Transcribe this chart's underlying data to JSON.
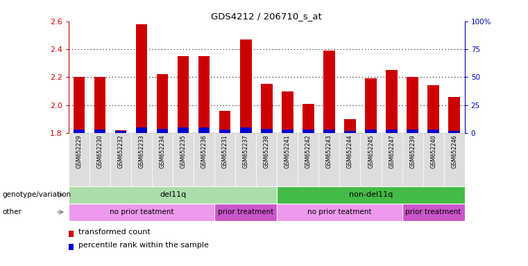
{
  "title": "GDS4212 / 206710_s_at",
  "samples": [
    "GSM652229",
    "GSM652230",
    "GSM652232",
    "GSM652233",
    "GSM652234",
    "GSM652235",
    "GSM652236",
    "GSM652231",
    "GSM652237",
    "GSM652238",
    "GSM652241",
    "GSM652242",
    "GSM652243",
    "GSM652244",
    "GSM652245",
    "GSM652247",
    "GSM652239",
    "GSM652240",
    "GSM652246"
  ],
  "red_values": [
    2.2,
    2.2,
    1.82,
    2.58,
    2.22,
    2.35,
    2.35,
    1.96,
    2.47,
    2.15,
    2.1,
    2.01,
    2.39,
    1.9,
    2.19,
    2.25,
    2.2,
    2.14,
    2.06
  ],
  "blue_pct": [
    3,
    3,
    2,
    5,
    4,
    5,
    5,
    3,
    5,
    4,
    3,
    3,
    3,
    2,
    3,
    3,
    3,
    3,
    2
  ],
  "ylim_left": [
    1.8,
    2.6
  ],
  "ylim_right": [
    0,
    100
  ],
  "yticks_left": [
    1.8,
    2.0,
    2.2,
    2.4,
    2.6
  ],
  "yticks_right": [
    0,
    25,
    50,
    75,
    100
  ],
  "ytick_labels_right": [
    "0",
    "25",
    "50",
    "75",
    "100%"
  ],
  "bar_color_red": "#cc0000",
  "bar_color_blue": "#0000cc",
  "bar_width": 0.55,
  "genotype_groups": [
    {
      "label": "del11q",
      "start": 0,
      "end": 10,
      "color": "#aaddaa"
    },
    {
      "label": "non-del11q",
      "start": 10,
      "end": 19,
      "color": "#44bb44"
    }
  ],
  "treatment_groups": [
    {
      "label": "no prior teatment",
      "start": 0,
      "end": 7,
      "color": "#ee99ee"
    },
    {
      "label": "prior treatment",
      "start": 7,
      "end": 10,
      "color": "#cc55cc"
    },
    {
      "label": "no prior teatment",
      "start": 10,
      "end": 16,
      "color": "#ee99ee"
    },
    {
      "label": "prior treatment",
      "start": 16,
      "end": 19,
      "color": "#cc55cc"
    }
  ],
  "legend_red_label": "transformed count",
  "legend_blue_label": "percentile rank within the sample",
  "label_genotype": "genotype/variation",
  "label_other": "other",
  "background_color": "#ffffff",
  "tick_label_bg": "#dddddd",
  "tick_color_left": "#cc0000",
  "tick_color_right": "#0000bb",
  "dotted_lines": [
    2.0,
    2.2,
    2.4
  ]
}
